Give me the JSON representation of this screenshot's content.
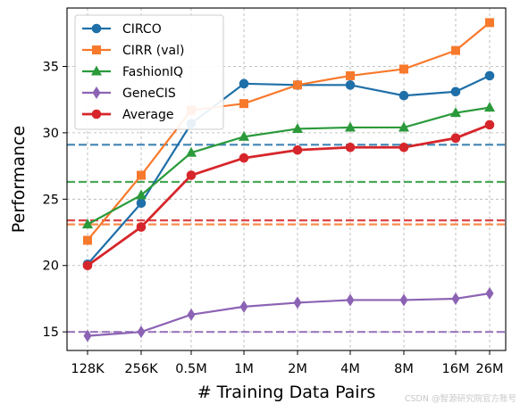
{
  "chart_data": {
    "type": "line",
    "xlabel": "# Training Data Pairs",
    "ylabel": "Performance",
    "categories": [
      "128K",
      "256K",
      "0.5M",
      "1M",
      "2M",
      "4M",
      "8M",
      "16M",
      "26M"
    ],
    "ylim": [
      13.6,
      39.4
    ],
    "yticks": [
      15,
      20,
      25,
      30,
      35
    ],
    "grid": true,
    "legend_position": "top-left",
    "series": [
      {
        "name": "CIRCO",
        "color": "#1f6fa8",
        "marker": "circle",
        "values": [
          20.1,
          24.7,
          30.7,
          33.7,
          33.6,
          33.6,
          32.8,
          33.1,
          34.3
        ]
      },
      {
        "name": "CIRR (val)",
        "color": "#f7792c",
        "marker": "square",
        "values": [
          21.9,
          26.8,
          31.7,
          32.2,
          33.6,
          34.3,
          34.8,
          36.2,
          38.3
        ]
      },
      {
        "name": "FashionIQ",
        "color": "#2a9a3a",
        "marker": "triangle",
        "values": [
          23.1,
          25.3,
          28.5,
          29.7,
          30.3,
          30.4,
          30.4,
          31.5,
          31.9
        ]
      },
      {
        "name": "GeneCIS",
        "color": "#8c63b4",
        "marker": "diamond",
        "values": [
          14.7,
          15.0,
          16.3,
          16.9,
          17.2,
          17.4,
          17.4,
          17.5,
          17.9
        ]
      },
      {
        "name": "Average",
        "color": "#d6262b",
        "marker": "circle",
        "values": [
          20.0,
          22.9,
          26.8,
          28.1,
          28.7,
          28.9,
          28.9,
          29.6,
          30.6
        ]
      }
    ],
    "baselines": [
      {
        "color": "#1f6fa8",
        "value": 29.1
      },
      {
        "color": "#2a9a3a",
        "value": 26.3
      },
      {
        "color": "#d6262b",
        "value": 23.4
      },
      {
        "color": "#f7792c",
        "value": 23.1
      },
      {
        "color": "#8c63b4",
        "value": 15.0
      }
    ]
  },
  "watermark": "CSDN @智源研究院官方账号"
}
